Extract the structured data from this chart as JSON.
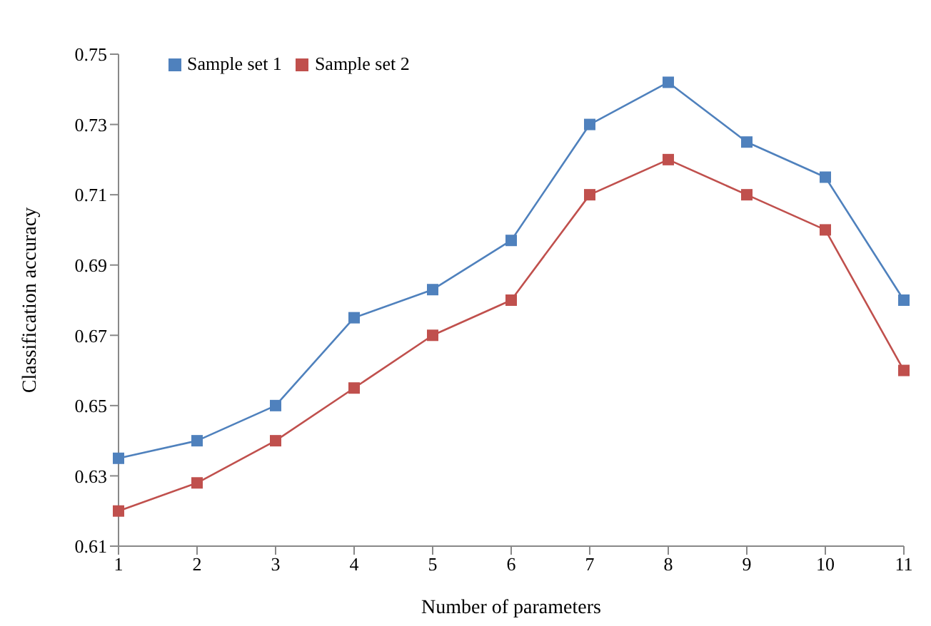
{
  "chart_data": {
    "type": "line",
    "xlabel": "Number of parameters",
    "ylabel": "Classification accuracy",
    "categories": [
      "1",
      "2",
      "3",
      "4",
      "5",
      "6",
      "7",
      "8",
      "9",
      "10",
      "11"
    ],
    "series": [
      {
        "name": "Sample set 1",
        "color": "#4f81bd",
        "values": [
          0.635,
          0.64,
          0.65,
          0.675,
          0.683,
          0.697,
          0.73,
          0.742,
          0.725,
          0.715,
          0.68
        ]
      },
      {
        "name": "Sample set 2",
        "color": "#c0504d",
        "values": [
          0.62,
          0.628,
          0.64,
          0.655,
          0.67,
          0.68,
          0.71,
          0.72,
          0.71,
          0.7,
          0.66
        ]
      }
    ],
    "ylim": [
      0.61,
      0.75
    ],
    "yticks": [
      0.61,
      0.63,
      0.65,
      0.67,
      0.69,
      0.71,
      0.73,
      0.75
    ],
    "grid": false,
    "legend": "top left",
    "marker": "square",
    "line_style": "solid"
  }
}
